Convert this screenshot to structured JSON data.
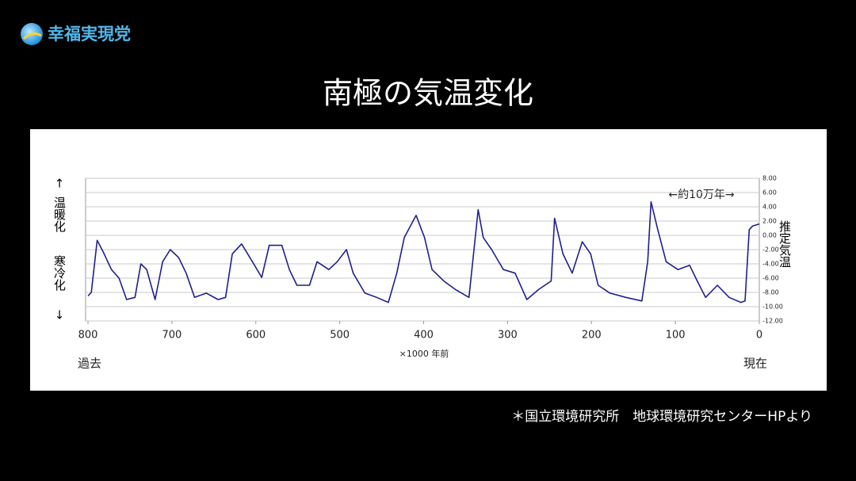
{
  "logo": "幸福実現党",
  "footnote": "＊国立環境研究所　地球環境研究センターHPより",
  "chart_data": {
    "type": "line",
    "title": "南極の気温変化",
    "x_label": "×1000 年前",
    "x_end_labels": [
      "過去",
      "現在"
    ],
    "y_label": "推定気温",
    "left_labels": [
      "↑",
      "温暖化",
      "寒冷化",
      "↓"
    ],
    "annotation": "←約10万年→",
    "color": "#1f1f8f",
    "grid": true,
    "xlim": [
      800,
      0
    ],
    "xticks": [
      800,
      700,
      600,
      500,
      400,
      300,
      200,
      100,
      0
    ],
    "ylim": [
      -12,
      8
    ],
    "yticks": [
      {
        "value": 8,
        "label": "8.00"
      },
      {
        "value": 6,
        "label": "6.00"
      },
      {
        "value": 4,
        "label": "4.00"
      },
      {
        "value": 2,
        "label": "2.00"
      },
      {
        "value": 0,
        "label": "0.00"
      },
      {
        "value": -2,
        "label": "-2.00"
      },
      {
        "value": -4,
        "label": "-4.00"
      },
      {
        "value": -6,
        "label": "-6.00"
      },
      {
        "value": -8,
        "label": "-8.00"
      },
      {
        "value": -10,
        "label": "-10.00"
      },
      {
        "value": -12,
        "label": "-12.00"
      }
    ],
    "x": [
      800,
      796,
      789,
      782,
      772,
      763,
      754,
      744,
      737,
      730,
      720,
      711,
      702,
      692,
      683,
      673,
      659,
      645,
      636,
      628,
      617,
      604,
      593,
      584,
      569,
      560,
      551,
      536,
      527,
      513,
      503,
      492,
      484,
      470,
      456,
      442,
      432,
      423,
      409,
      399,
      390,
      376,
      362,
      346,
      335,
      329,
      319,
      305,
      291,
      277,
      263,
      248,
      244,
      234,
      223,
      211,
      201,
      192,
      178,
      159,
      140,
      133,
      129,
      121,
      111,
      97,
      83,
      74,
      64,
      50,
      36,
      22,
      17,
      12,
      8,
      0
    ],
    "values": [
      -8.5,
      -8,
      -0.7,
      -2.3,
      -4.8,
      -6,
      -9,
      -8.7,
      -4,
      -4.8,
      -9,
      -3.7,
      -2,
      -3.1,
      -5.3,
      -8.7,
      -8.1,
      -9,
      -8.7,
      -2.6,
      -1.2,
      -3.7,
      -5.9,
      -1.4,
      -1.4,
      -4.8,
      -7,
      -7,
      -3.7,
      -4.8,
      -3.7,
      -2,
      -5.3,
      -8.1,
      -8.7,
      -9.4,
      -5.3,
      -0.3,
      2.8,
      -0.3,
      -4.8,
      -6.4,
      -7.6,
      -8.7,
      3.6,
      -0.3,
      -2,
      -4.8,
      -5.3,
      -9,
      -7.6,
      -6.4,
      2.4,
      -2.6,
      -5.3,
      -0.9,
      -2.6,
      -7,
      -8.1,
      -8.7,
      -9.2,
      -3.7,
      4.7,
      0.8,
      -3.7,
      -4.8,
      -4.2,
      -6.4,
      -8.7,
      -7,
      -8.7,
      -9.4,
      -9.2,
      0.8,
      1.3,
      1.6
    ]
  }
}
